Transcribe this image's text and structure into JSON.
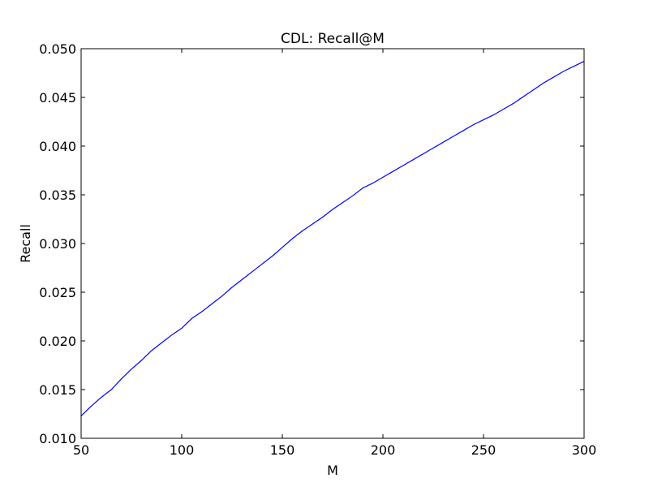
{
  "chart_data": {
    "type": "line",
    "title": "CDL: Recall@M",
    "xlabel": "M",
    "ylabel": "Recall",
    "xlim": [
      50,
      300
    ],
    "ylim": [
      0.01,
      0.05
    ],
    "xticks": [
      50,
      100,
      150,
      200,
      250,
      300
    ],
    "xtick_labels": [
      "50",
      "100",
      "150",
      "200",
      "250",
      "300"
    ],
    "yticks": [
      0.01,
      0.015,
      0.02,
      0.025,
      0.03,
      0.035,
      0.04,
      0.045,
      0.05
    ],
    "ytick_labels": [
      "0.010",
      "0.015",
      "0.020",
      "0.025",
      "0.030",
      "0.035",
      "0.040",
      "0.045",
      "0.050"
    ],
    "grid": false,
    "legend": "none",
    "series": [
      {
        "color": "#0000ff",
        "x": [
          50,
          55,
          60,
          65,
          70,
          75,
          80,
          85,
          90,
          95,
          100,
          105,
          110,
          115,
          120,
          125,
          130,
          135,
          140,
          145,
          150,
          155,
          160,
          165,
          170,
          175,
          180,
          185,
          190,
          195,
          200,
          205,
          210,
          215,
          220,
          225,
          230,
          235,
          240,
          245,
          250,
          255,
          260,
          265,
          270,
          275,
          280,
          285,
          290,
          295,
          300
        ],
        "y": [
          0.0123,
          0.0133,
          0.0142,
          0.015,
          0.0161,
          0.0171,
          0.018,
          0.019,
          0.0198,
          0.0206,
          0.0213,
          0.0223,
          0.023,
          0.0238,
          0.0246,
          0.0255,
          0.0263,
          0.0271,
          0.0279,
          0.0287,
          0.0296,
          0.0305,
          0.0313,
          0.032,
          0.0327,
          0.0335,
          0.0342,
          0.0349,
          0.0357,
          0.0362,
          0.0368,
          0.0374,
          0.038,
          0.0386,
          0.0392,
          0.0398,
          0.0404,
          0.041,
          0.0416,
          0.0422,
          0.0427,
          0.0432,
          0.0438,
          0.0444,
          0.0451,
          0.0458,
          0.0465,
          0.0471,
          0.0477,
          0.0482,
          0.0487
        ]
      }
    ]
  }
}
